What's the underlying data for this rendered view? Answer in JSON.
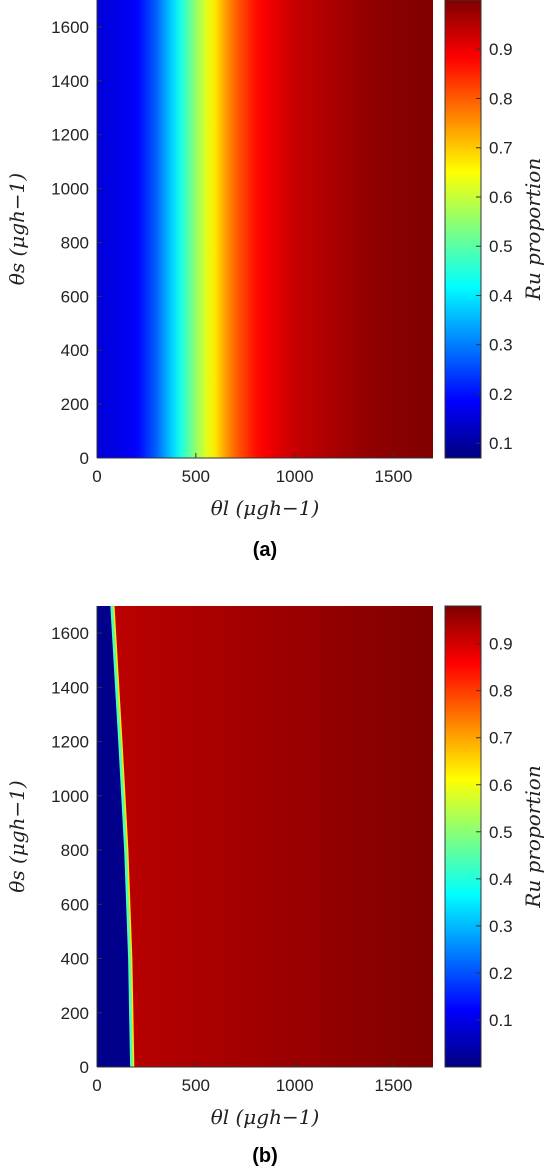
{
  "chart_data": [
    {
      "type": "heatmap",
      "panel_label": "(a)",
      "xlabel": "θl (μgh−1)",
      "ylabel": "θs (μgh−1)",
      "colorbar_label": "Ru proportion",
      "xlim": [
        0,
        1700
      ],
      "ylim": [
        0,
        1700
      ],
      "xticks": [
        0,
        500,
        1000,
        1500
      ],
      "yticks": [
        0,
        200,
        400,
        600,
        800,
        1000,
        1200,
        1400,
        1600
      ],
      "colorbar_range": [
        0.07,
        1.0
      ],
      "colorbar_ticks": [
        0.1,
        0.2,
        0.3,
        0.4,
        0.5,
        0.6,
        0.7,
        0.8,
        0.9
      ],
      "colormap": "jet",
      "description_of_field": "value depends on θl only (uniform along θs)",
      "profile_x": [
        0,
        100,
        200,
        300,
        350,
        400,
        450,
        500,
        550,
        600,
        650,
        700,
        800,
        900,
        1000,
        1200,
        1400,
        1700
      ],
      "profile_value": [
        0.09,
        0.1,
        0.12,
        0.22,
        0.29,
        0.36,
        0.44,
        0.52,
        0.59,
        0.65,
        0.72,
        0.78,
        0.86,
        0.9,
        0.93,
        0.96,
        0.985,
        1.0
      ]
    },
    {
      "type": "heatmap",
      "panel_label": "(b)",
      "xlabel": "θl (μgh−1)",
      "ylabel": "θs (μgh−1)",
      "colorbar_label": "Ru proportion",
      "xlim": [
        0,
        1700
      ],
      "ylim": [
        0,
        1700
      ],
      "xticks": [
        0,
        500,
        1000,
        1500
      ],
      "yticks": [
        0,
        200,
        400,
        600,
        800,
        1000,
        1200,
        1400,
        1600
      ],
      "colorbar_range": [
        0.0,
        0.98
      ],
      "colorbar_ticks": [
        0.1,
        0.2,
        0.3,
        0.4,
        0.5,
        0.6,
        0.7,
        0.8,
        0.9
      ],
      "colormap": "jet",
      "description_of_field": "sharp transition from ~0 to ~0.92 along a boundary curve; slowly increasing to the right",
      "boundary_theta_s": [
        0,
        400,
        800,
        1200,
        1700
      ],
      "boundary_theta_l": [
        175,
        165,
        145,
        115,
        75
      ],
      "low_value": 0.01,
      "high_value_left": 0.92,
      "high_value_right": 0.98
    }
  ]
}
